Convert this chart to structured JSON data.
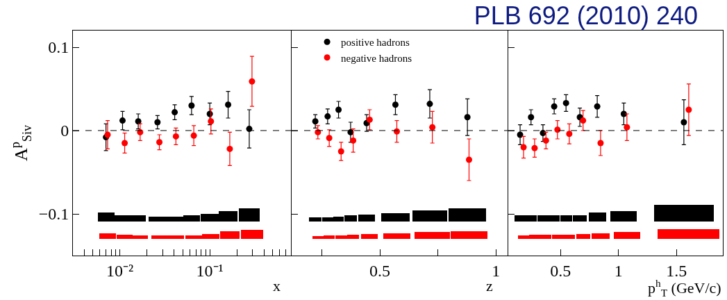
{
  "chart_data": [
    {
      "type": "scatter",
      "xlabel": "x",
      "ylabel": "A$^{p}$$_{Siv}$",
      "log": "x",
      "xlim": [
        0.003,
        0.8
      ],
      "xticks": [
        {
          "value": 0.004,
          "label": null
        },
        {
          "value": 0.005,
          "label": null
        },
        {
          "value": 0.006,
          "label": null
        },
        {
          "value": 0.007,
          "label": null
        },
        {
          "value": 0.008,
          "label": null
        },
        {
          "value": 0.009,
          "label": null
        },
        {
          "value": 0.01,
          "label": "10⁻²"
        },
        {
          "value": 0.02,
          "label": null
        },
        {
          "value": 0.03,
          "label": null
        },
        {
          "value": 0.04,
          "label": null
        },
        {
          "value": 0.05,
          "label": null
        },
        {
          "value": 0.06,
          "label": null
        },
        {
          "value": 0.07,
          "label": null
        },
        {
          "value": 0.08,
          "label": null
        },
        {
          "value": 0.09,
          "label": null
        },
        {
          "value": 0.1,
          "label": "10⁻¹"
        },
        {
          "value": 0.2,
          "label": null
        },
        {
          "value": 0.3,
          "label": null
        },
        {
          "value": 0.4,
          "label": null
        },
        {
          "value": 0.5,
          "label": null
        },
        {
          "value": 0.6,
          "label": null
        },
        {
          "value": 0.7,
          "label": null
        },
        {
          "value": 0.8,
          "label": null
        }
      ],
      "ylim": [
        -0.15,
        0.12
      ],
      "yticks": [
        0.1,
        0,
        {
          "value": -0.1,
          "label": "−0.1"
        }
      ],
      "marker": "circle",
      "ref_lines": [
        {
          "axis": "y",
          "value": 0,
          "color": "#000000",
          "line_style": "dashed"
        }
      ],
      "series": [
        {
          "color": "#000000",
          "x": [
            0.007,
            0.0107,
            0.016,
            0.0262,
            0.0407,
            0.0627,
            0.1,
            0.16,
            0.275
          ],
          "values": [
            -0.008,
            0.012,
            0.011,
            0.01,
            0.022,
            0.03,
            0.02,
            0.031,
            0.002
          ],
          "errors": [
            0.016,
            0.011,
            0.009,
            0.008,
            0.009,
            0.011,
            0.013,
            0.016,
            0.023
          ]
        },
        {
          "color": "#ff0000",
          "x": [
            0.0073,
            0.0113,
            0.0168,
            0.0275,
            0.042,
            0.0664,
            0.103,
            0.167,
            0.295
          ],
          "values": [
            -0.005,
            -0.015,
            -0.002,
            -0.014,
            -0.007,
            -0.006,
            0.011,
            -0.022,
            0.059
          ],
          "errors": [
            0.017,
            0.012,
            0.01,
            0.009,
            0.01,
            0.012,
            0.015,
            0.02,
            0.03
          ]
        },
        {
          "type": "bar",
          "color": "#000000",
          "x": [
            0.007,
            0.0107,
            0.016,
            0.0262,
            0.0407,
            0.0627,
            0.1,
            0.16,
            0.275
          ],
          "values": [
            0.011,
            0.007,
            0.007,
            0.006,
            0.006,
            0.007,
            0.009,
            0.012,
            0.016
          ],
          "base": [
            -0.109,
            -0.109,
            -0.109,
            -0.109,
            -0.109,
            -0.109,
            -0.109,
            -0.109,
            -0.109
          ]
        },
        {
          "type": "bar",
          "color": "#ff0000",
          "x": [
            0.0073,
            0.0113,
            0.0168,
            0.0275,
            0.042,
            0.0664,
            0.103,
            0.167,
            0.295
          ],
          "values": [
            0.007,
            0.005,
            0.004,
            0.004,
            0.004,
            0.004,
            0.006,
            0.009,
            0.011
          ],
          "base": [
            -0.13,
            -0.13,
            -0.13,
            -0.13,
            -0.13,
            -0.13,
            -0.13,
            -0.13,
            -0.13
          ]
        }
      ]
    },
    {
      "type": "scatter",
      "xlabel": "z",
      "xlim": [
        0.12,
        1.05
      ],
      "xticks": [
        {
          "value": 0.25,
          "label": null
        },
        0.5,
        {
          "value": 0.75,
          "label": null
        },
        1
      ],
      "ylim": [
        -0.15,
        0.12
      ],
      "yticks": [
        {
          "value": 0.1,
          "label": null
        },
        {
          "value": 0,
          "label": null
        },
        {
          "value": -0.1,
          "label": null
        }
      ],
      "tick_labels": "x",
      "marker": "circle",
      "legend": "top",
      "ref_lines": [
        {
          "axis": "y",
          "value": 0,
          "color": "#000000",
          "line_style": "dashed"
        }
      ],
      "series": [
        {
          "name": "positive hadrons",
          "color": "#000000",
          "x": [
            0.222,
            0.275,
            0.322,
            0.374,
            0.443,
            0.567,
            0.715,
            0.877
          ],
          "values": [
            0.011,
            0.017,
            0.025,
            -0.002,
            0.009,
            0.031,
            0.032,
            0.016
          ],
          "errors": [
            0.008,
            0.009,
            0.01,
            0.012,
            0.01,
            0.012,
            0.017,
            0.022
          ]
        },
        {
          "name": "negative hadrons",
          "color": "#ff0000",
          "x": [
            0.233,
            0.282,
            0.333,
            0.385,
            0.456,
            0.573,
            0.726,
            0.884
          ],
          "values": [
            -0.002,
            -0.009,
            -0.025,
            -0.012,
            0.013,
            -0.001,
            0.004,
            -0.035
          ],
          "errors": [
            0.008,
            0.01,
            0.011,
            0.014,
            0.012,
            0.013,
            0.019,
            0.025
          ]
        },
        {
          "type": "bar",
          "color": "#000000",
          "x": [
            0.222,
            0.275,
            0.322,
            0.374,
            0.443,
            0.567,
            0.715,
            0.877
          ],
          "values": [
            0.005,
            0.005,
            0.006,
            0.007,
            0.008,
            0.01,
            0.013,
            0.016
          ],
          "base": [
            -0.109,
            -0.109,
            -0.109,
            -0.109,
            -0.109,
            -0.109,
            -0.109,
            -0.109
          ]
        },
        {
          "type": "bar",
          "color": "#ff0000",
          "x": [
            0.233,
            0.282,
            0.333,
            0.385,
            0.456,
            0.573,
            0.726,
            0.884
          ],
          "values": [
            0.003,
            0.004,
            0.004,
            0.005,
            0.006,
            0.007,
            0.008,
            0.009
          ],
          "base": [
            -0.13,
            -0.13,
            -0.13,
            -0.13,
            -0.13,
            -0.13,
            -0.13,
            -0.13
          ]
        }
      ]
    },
    {
      "type": "scatter",
      "xlabel": "p$^{h}$$_{T}$ (GeV/c)",
      "xlim": [
        0.05,
        1.9
      ],
      "xticks": [
        0.5,
        1,
        1.5
      ],
      "ylim": [
        -0.15,
        0.12
      ],
      "yticks": [
        {
          "value": 0.1,
          "label": null
        },
        {
          "value": 0,
          "label": null
        },
        {
          "value": -0.1,
          "label": null
        }
      ],
      "tick_labels": "x",
      "marker": "circle",
      "annotations": [
        "PLB 692 (2010) 240"
      ],
      "ref_lines": [
        {
          "axis": "y",
          "value": 0,
          "color": "#000000",
          "line_style": "dashed"
        }
      ],
      "series": [
        {
          "color": "#000000",
          "x": [
            0.152,
            0.246,
            0.349,
            0.446,
            0.548,
            0.667,
            0.817,
            1.046,
            1.564
          ],
          "values": [
            -0.005,
            0.016,
            -0.003,
            0.029,
            0.033,
            0.016,
            0.029,
            0.02,
            0.01
          ],
          "errors": [
            0.012,
            0.009,
            0.01,
            0.009,
            0.01,
            0.011,
            0.013,
            0.013,
            0.027
          ]
        },
        {
          "color": "#ff0000",
          "x": [
            0.182,
            0.277,
            0.375,
            0.474,
            0.576,
            0.695,
            0.846,
            1.073,
            1.606
          ],
          "values": [
            -0.02,
            -0.021,
            -0.012,
            0.001,
            -0.004,
            0.012,
            -0.015,
            0.004,
            0.025
          ],
          "errors": [
            0.013,
            0.011,
            0.01,
            0.011,
            0.012,
            0.012,
            0.015,
            0.016,
            0.031
          ]
        },
        {
          "type": "bar",
          "color": "#000000",
          "x": [
            0.152,
            0.246,
            0.349,
            0.446,
            0.548,
            0.667,
            0.817,
            1.046,
            1.564
          ],
          "values": [
            0.007,
            0.007,
            0.007,
            0.007,
            0.007,
            0.007,
            0.011,
            0.012,
            0.02
          ],
          "base": [
            -0.109,
            -0.109,
            -0.109,
            -0.109,
            -0.109,
            -0.109,
            -0.109,
            -0.109,
            -0.109
          ]
        },
        {
          "type": "bar",
          "color": "#ff0000",
          "x": [
            0.182,
            0.277,
            0.375,
            0.474,
            0.576,
            0.695,
            0.846,
            1.073,
            1.606
          ],
          "values": [
            0.004,
            0.005,
            0.005,
            0.005,
            0.005,
            0.006,
            0.007,
            0.008,
            0.012
          ],
          "base": [
            -0.13,
            -0.13,
            -0.13,
            -0.13,
            -0.13,
            -0.13,
            -0.13,
            -0.13,
            -0.13
          ]
        }
      ]
    }
  ]
}
